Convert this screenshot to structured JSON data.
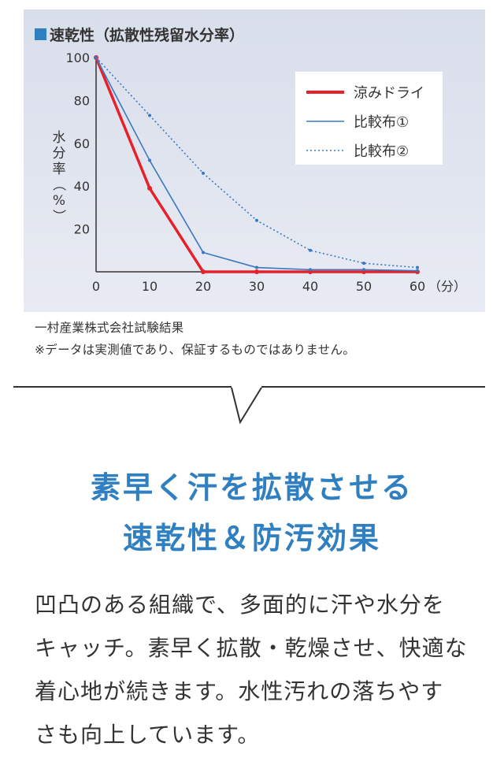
{
  "chart_data": {
    "type": "line",
    "title": "速乾性（拡散性残留水分率）",
    "ylabel": "水分率（%）",
    "x_unit": "（分）",
    "x": [
      0,
      10,
      20,
      30,
      40,
      50,
      60
    ],
    "x_ticks": [
      "0",
      "10",
      "20",
      "30",
      "40",
      "50",
      "60"
    ],
    "y_ticks": [
      "20",
      "40",
      "60",
      "80",
      "100"
    ],
    "xlim": [
      0,
      60
    ],
    "ylim": [
      0,
      100
    ],
    "grid": false,
    "legend_position": "top-right",
    "series": [
      {
        "name": "涼みドライ",
        "values": [
          100,
          39,
          0,
          0,
          0,
          0,
          0
        ],
        "color": "#e8202a",
        "style": "solid-thick"
      },
      {
        "name": "比較布①",
        "values": [
          100,
          52,
          9,
          2,
          1,
          1,
          0.5
        ],
        "color": "#3a78c0",
        "style": "solid"
      },
      {
        "name": "比較布②",
        "values": [
          100,
          73,
          46,
          24,
          10,
          4,
          2
        ],
        "color": "#3a78c0",
        "style": "dotted"
      }
    ]
  },
  "notes": {
    "source": "一村産業株式会社試験結果",
    "disclaimer": "※データは実測値であり、保証するものではありません。"
  },
  "headline": {
    "line1": "素早く汗を拡散させる",
    "line2": "速乾性＆防汚効果"
  },
  "body": {
    "line1": "凹凸のある組織で、多面的に汗や水分を",
    "line2": "キャッチ。素早く拡散・乾燥させ、快適な",
    "line3": "着心地が続きます。水性汚れの落ちやす",
    "line4": "さも向上しています。"
  },
  "colors": {
    "accent_blue": "#2f7fc1",
    "panel_bg": "#dfe3ee"
  }
}
